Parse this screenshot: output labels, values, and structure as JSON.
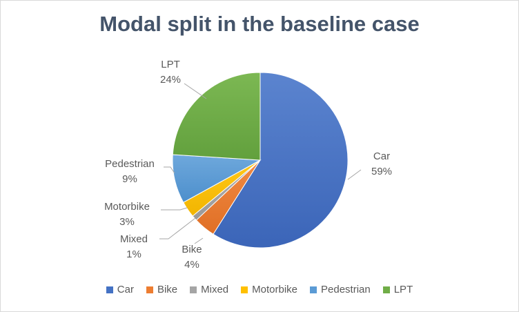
{
  "chart_data": {
    "type": "pie",
    "title": "Modal split in the baseline case",
    "slices": [
      {
        "label": "Car",
        "value": 59,
        "display": "59%",
        "color": "#4472c4"
      },
      {
        "label": "Bike",
        "value": 4,
        "display": "4%",
        "color": "#ed7d31"
      },
      {
        "label": "Mixed",
        "value": 1,
        "display": "1%",
        "color": "#a5a5a5"
      },
      {
        "label": "Motorbike",
        "value": 3,
        "display": "3%",
        "color": "#ffc000"
      },
      {
        "label": "Pedestrian",
        "value": 9,
        "display": "9%",
        "color": "#5b9bd5"
      },
      {
        "label": "LPT",
        "value": 24,
        "display": "24%",
        "color": "#70ad47"
      }
    ],
    "legend_position": "bottom",
    "data_labels": "category and percentage, outside with leader lines"
  }
}
